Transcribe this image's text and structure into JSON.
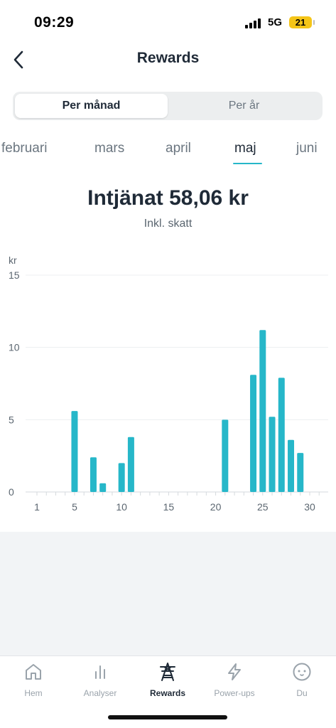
{
  "status_bar": {
    "time": "09:29",
    "network": "5G",
    "battery": "21"
  },
  "header": {
    "title": "Rewards",
    "back_icon": "chevron-left-icon"
  },
  "segment": {
    "options": [
      "Per månad",
      "Per år"
    ],
    "selected": 0
  },
  "months": {
    "items": [
      "februari",
      "mars",
      "april",
      "maj",
      "juni"
    ],
    "selected": 3
  },
  "summary": {
    "earned": "Intjänat 58,06 kr",
    "subtitle": "Inkl. skatt"
  },
  "chart_data": {
    "type": "bar",
    "title": "",
    "xlabel": "",
    "ylabel": "kr",
    "ylim": [
      0,
      15
    ],
    "yticks": [
      0,
      5,
      10,
      15
    ],
    "xlim": [
      1,
      31
    ],
    "xticks": [
      1,
      5,
      10,
      15,
      20,
      25,
      30
    ],
    "grid": true,
    "color": "#26b7c9",
    "x": [
      5,
      7,
      8,
      10,
      11,
      21,
      24,
      25,
      26,
      27,
      28,
      29
    ],
    "values": [
      5.6,
      2.4,
      0.6,
      2.0,
      3.8,
      5.0,
      8.1,
      11.2,
      5.2,
      7.9,
      3.6,
      2.7
    ]
  },
  "tabbar": {
    "items": [
      {
        "label": "Hem",
        "icon": "home-icon"
      },
      {
        "label": "Analyser",
        "icon": "bar-chart-icon"
      },
      {
        "label": "Rewards",
        "icon": "power-tower-icon"
      },
      {
        "label": "Power-ups",
        "icon": "lightning-icon"
      },
      {
        "label": "Du",
        "icon": "face-icon"
      }
    ],
    "selected": 2
  },
  "colors": {
    "accent": "#26b7c9",
    "text": "#1f2a37",
    "muted": "#6b7680"
  }
}
